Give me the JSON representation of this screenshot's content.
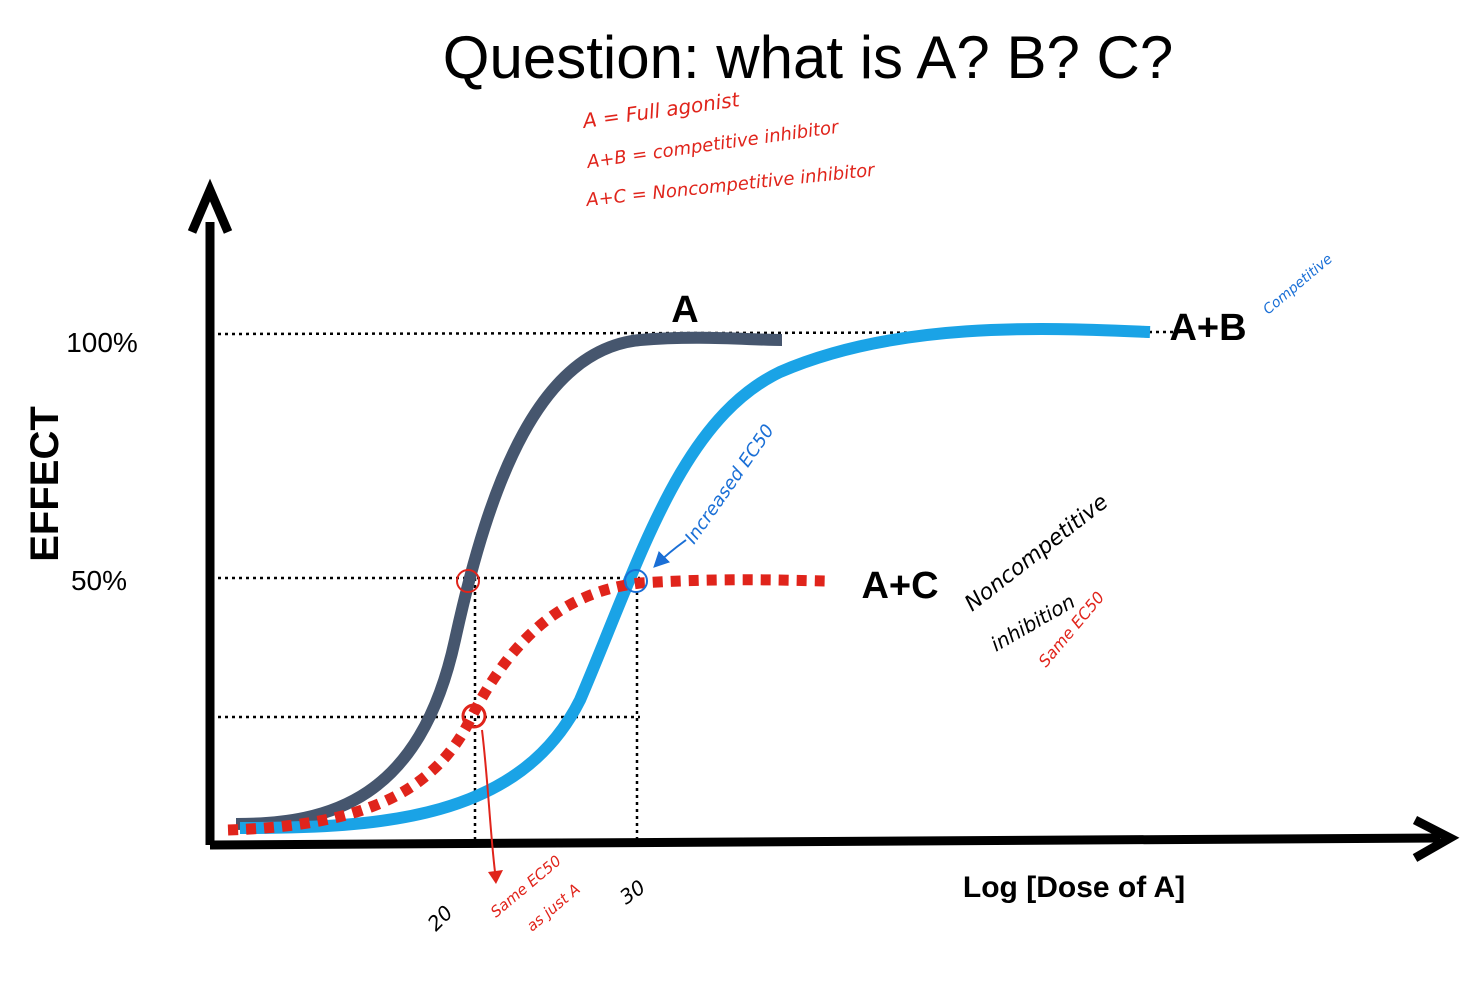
{
  "chart_data": {
    "type": "line",
    "title": "Question: what is A? B? C?",
    "xlabel": "Log [Dose of A]",
    "ylabel": "EFFECT",
    "y_ticks": [
      "100%",
      "50%"
    ],
    "x_ticks": [
      "20",
      "30"
    ],
    "ylim": [
      0,
      100
    ],
    "grid": false,
    "legend": "curve labels",
    "series": [
      {
        "name": "A",
        "color": "#46566e",
        "style": "solid",
        "points": [
          [
            5,
            1
          ],
          [
            12,
            3
          ],
          [
            18,
            12
          ],
          [
            20,
            50
          ],
          [
            22,
            85
          ],
          [
            26,
            97
          ],
          [
            32,
            99
          ],
          [
            40,
            100
          ]
        ]
      },
      {
        "name": "A+B",
        "color": "#1aa3e6",
        "style": "solid",
        "points": [
          [
            5,
            1
          ],
          [
            14,
            3
          ],
          [
            22,
            9
          ],
          [
            27,
            20
          ],
          [
            30,
            50
          ],
          [
            33,
            80
          ],
          [
            40,
            97
          ],
          [
            50,
            100
          ],
          [
            65,
            100
          ]
        ]
      },
      {
        "name": "A+C",
        "color": "#e0241b",
        "style": "dashed",
        "points": [
          [
            4,
            1
          ],
          [
            12,
            3
          ],
          [
            18,
            10
          ],
          [
            20.5,
            27
          ],
          [
            25,
            42
          ],
          [
            30,
            49
          ],
          [
            40,
            50
          ]
        ]
      }
    ],
    "reference_lines": [
      {
        "y": "100%"
      },
      {
        "y": "50%"
      },
      {
        "y": "25%"
      },
      {
        "x": "20"
      },
      {
        "x": "30"
      }
    ]
  },
  "annotations": {
    "hand_a": "A = Full agonist",
    "hand_ab": "A+B = competitive inhibitor",
    "hand_ac": "A+C = Noncompetitive inhibitor",
    "competitive": "Competitive",
    "increased": "Increased EC50",
    "noncomp_1": "Noncompetitive",
    "noncomp_2": "inhibition",
    "same_ec50": "Same EC50",
    "same_ec50_x_1": "Same EC50",
    "same_ec50_x_2": "as just A"
  },
  "colors": {
    "axis": "#000000",
    "red_ink": "#e0241b",
    "blue_ink": "#1a6fd6"
  }
}
